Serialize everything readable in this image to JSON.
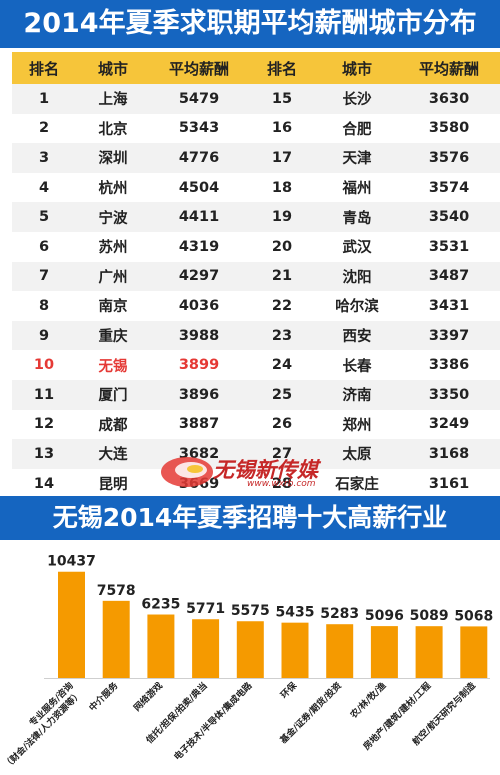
{
  "header": {
    "title": "2014年夏季求职期平均薪酬城市分布"
  },
  "table": {
    "columns": [
      "排名",
      "城市",
      "平均薪酬",
      "排名",
      "城市",
      "平均薪酬"
    ],
    "rows": [
      {
        "rank_a": "1",
        "city_a": "上海",
        "salary_a": "5479",
        "rank_b": "15",
        "city_b": "长沙",
        "salary_b": "3630"
      },
      {
        "rank_a": "2",
        "city_a": "北京",
        "salary_a": "5343",
        "rank_b": "16",
        "city_b": "合肥",
        "salary_b": "3580"
      },
      {
        "rank_a": "3",
        "city_a": "深圳",
        "salary_a": "4776",
        "rank_b": "17",
        "city_b": "天津",
        "salary_b": "3576"
      },
      {
        "rank_a": "4",
        "city_a": "杭州",
        "salary_a": "4504",
        "rank_b": "18",
        "city_b": "福州",
        "salary_b": "3574"
      },
      {
        "rank_a": "5",
        "city_a": "宁波",
        "salary_a": "4411",
        "rank_b": "19",
        "city_b": "青岛",
        "salary_b": "3540"
      },
      {
        "rank_a": "6",
        "city_a": "苏州",
        "salary_a": "4319",
        "rank_b": "20",
        "city_b": "武汉",
        "salary_b": "3531"
      },
      {
        "rank_a": "7",
        "city_a": "广州",
        "salary_a": "4297",
        "rank_b": "21",
        "city_b": "沈阳",
        "salary_b": "3487"
      },
      {
        "rank_a": "8",
        "city_a": "南京",
        "salary_a": "4036",
        "rank_b": "22",
        "city_b": "哈尔滨",
        "salary_b": "3431"
      },
      {
        "rank_a": "9",
        "city_a": "重庆",
        "salary_a": "3988",
        "rank_b": "23",
        "city_b": "西安",
        "salary_b": "3397"
      },
      {
        "rank_a": "10",
        "city_a": "无锡",
        "salary_a": "3899",
        "rank_b": "24",
        "city_b": "长春",
        "salary_b": "3386",
        "highlight": true
      },
      {
        "rank_a": "11",
        "city_a": "厦门",
        "salary_a": "3896",
        "rank_b": "25",
        "city_b": "济南",
        "salary_b": "3350"
      },
      {
        "rank_a": "12",
        "city_a": "成都",
        "salary_a": "3887",
        "rank_b": "26",
        "city_b": "郑州",
        "salary_b": "3249"
      },
      {
        "rank_a": "13",
        "city_a": "大连",
        "salary_a": "3682",
        "rank_b": "27",
        "city_b": "太原",
        "salary_b": "3168"
      },
      {
        "rank_a": "14",
        "city_a": "昆明",
        "salary_a": "3669",
        "rank_b": "28",
        "city_b": "石家庄",
        "salary_b": "3161"
      }
    ],
    "highlight_color": "#e53935",
    "header_color": "#f6c53a"
  },
  "watermark": {
    "text": "无锡新传媒",
    "url": "www.wxrb.com"
  },
  "section": {
    "title": "无锡2014年夏季招聘十大高薪行业"
  },
  "colors": {
    "banner": "#1565c0",
    "bar": "#f59a00"
  },
  "chart_data": {
    "type": "bar",
    "title": "无锡2014年夏季招聘十大高薪行业",
    "categories": [
      "专业服务/咨询（财会/法律/人力资源等）",
      "中介服务",
      "网络游戏",
      "信托/担保/拍卖/典当",
      "电子技术/半导体/集成电路",
      "环保",
      "基金/证券/期货/投资",
      "农/林/牧/渔",
      "房地产/建筑/建材/工程",
      "航空/航天研究与制造"
    ],
    "values": [
      10437,
      7578,
      6235,
      5771,
      5575,
      5435,
      5283,
      5096,
      5089,
      5068
    ],
    "value_labels": [
      "10437",
      "7578",
      "6235",
      "5771",
      "5575",
      "5435",
      "5283",
      "5096",
      "5089",
      "5068"
    ],
    "ylim": [
      0,
      11000
    ],
    "grid": false,
    "xlabel": "",
    "ylabel": ""
  }
}
